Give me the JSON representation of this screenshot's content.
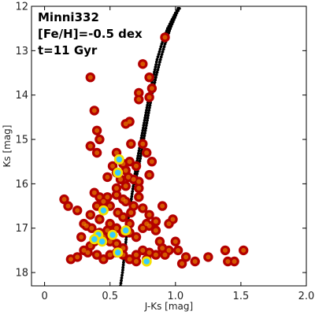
{
  "chart_data": {
    "type": "scatter",
    "title": "",
    "xlabel": "J-Ks [mag]",
    "ylabel": "Ks [mag]",
    "xlim": [
      -0.1,
      2.0
    ],
    "ylim": [
      18.3,
      12.0
    ],
    "y_inverted": true,
    "xticks": [
      0,
      0.5,
      1.0,
      1.5,
      2.0
    ],
    "xtick_labels": [
      "0",
      "0.5",
      "1.0",
      "1.5",
      "2.0"
    ],
    "yticks": [
      12,
      13,
      14,
      15,
      16,
      17,
      18
    ],
    "ytick_labels": [
      "12",
      "13",
      "14",
      "15",
      "16",
      "17",
      "18"
    ],
    "grid": false,
    "annotations": [
      "Minni332",
      "[Fe/H]=-0.5 dex",
      "t=11 Gyr"
    ],
    "colors": {
      "star_outer": "#b30000",
      "star_mid": "#f0a000",
      "star_core": "#f5e000",
      "dense_core": "#33ccff",
      "isochrone": "#000000"
    },
    "series": [
      {
        "name": "",
        "kind": "stars",
        "points": [
          [
            0.35,
            13.6
          ],
          [
            0.38,
            14.35
          ],
          [
            0.4,
            14.8
          ],
          [
            0.42,
            15.0
          ],
          [
            0.35,
            15.15
          ],
          [
            0.4,
            15.3
          ],
          [
            0.55,
            15.3
          ],
          [
            0.6,
            15.55
          ],
          [
            0.62,
            15.7
          ],
          [
            0.52,
            15.6
          ],
          [
            0.55,
            15.75
          ],
          [
            0.65,
            15.5
          ],
          [
            0.48,
            15.85
          ],
          [
            0.58,
            15.9
          ],
          [
            0.64,
            15.85
          ],
          [
            0.68,
            15.9
          ],
          [
            0.7,
            15.6
          ],
          [
            0.72,
            15.95
          ],
          [
            0.55,
            16.1
          ],
          [
            0.62,
            16.05
          ],
          [
            0.38,
            16.2
          ],
          [
            0.42,
            16.3
          ],
          [
            0.45,
            16.4
          ],
          [
            0.48,
            16.3
          ],
          [
            0.5,
            16.5
          ],
          [
            0.45,
            16.6
          ],
          [
            0.4,
            16.5
          ],
          [
            0.35,
            16.7
          ],
          [
            0.3,
            16.9
          ],
          [
            0.25,
            16.6
          ],
          [
            0.15,
            16.35
          ],
          [
            0.18,
            16.5
          ],
          [
            0.42,
            16.8
          ],
          [
            0.5,
            16.9
          ],
          [
            0.55,
            17.0
          ],
          [
            0.6,
            17.1
          ],
          [
            0.65,
            17.1
          ],
          [
            0.7,
            17.2
          ],
          [
            0.75,
            17.0
          ],
          [
            0.8,
            16.95
          ],
          [
            0.85,
            17.05
          ],
          [
            0.88,
            17.3
          ],
          [
            0.9,
            17.45
          ],
          [
            0.95,
            17.5
          ],
          [
            0.92,
            17.6
          ],
          [
            0.85,
            17.6
          ],
          [
            0.8,
            17.55
          ],
          [
            0.75,
            17.5
          ],
          [
            0.7,
            17.6
          ],
          [
            0.6,
            17.45
          ],
          [
            0.55,
            17.35
          ],
          [
            0.5,
            17.3
          ],
          [
            0.45,
            17.2
          ],
          [
            0.4,
            17.25
          ],
          [
            0.38,
            17.3
          ],
          [
            0.35,
            17.4
          ],
          [
            0.42,
            17.1
          ],
          [
            0.48,
            17.05
          ],
          [
            0.3,
            17.5
          ],
          [
            0.25,
            17.65
          ],
          [
            0.2,
            17.7
          ],
          [
            0.33,
            17.55
          ],
          [
            0.4,
            17.6
          ],
          [
            0.45,
            17.7
          ],
          [
            0.5,
            17.6
          ],
          [
            0.55,
            17.55
          ],
          [
            0.6,
            17.6
          ],
          [
            0.65,
            17.7
          ],
          [
            0.7,
            17.75
          ],
          [
            0.78,
            17.7
          ],
          [
            0.62,
            16.4
          ],
          [
            0.68,
            16.5
          ],
          [
            0.72,
            16.3
          ],
          [
            0.75,
            16.55
          ],
          [
            0.8,
            16.7
          ],
          [
            0.78,
            16.9
          ],
          [
            0.85,
            16.85
          ],
          [
            0.6,
            16.75
          ],
          [
            0.65,
            16.9
          ],
          [
            0.55,
            16.25
          ],
          [
            0.6,
            16.35
          ],
          [
            0.72,
            16.1
          ],
          [
            0.75,
            15.1
          ],
          [
            0.78,
            15.3
          ],
          [
            0.8,
            15.8
          ],
          [
            0.82,
            15.5
          ],
          [
            0.66,
            15.1
          ],
          [
            0.62,
            14.65
          ],
          [
            0.65,
            14.6
          ],
          [
            0.72,
            14.1
          ],
          [
            0.72,
            13.95
          ],
          [
            0.75,
            13.3
          ],
          [
            0.8,
            13.6
          ],
          [
            0.82,
            13.85
          ],
          [
            0.8,
            14.05
          ],
          [
            0.92,
            12.7
          ],
          [
            0.98,
            16.8
          ],
          [
            1.0,
            17.3
          ],
          [
            1.02,
            17.5
          ],
          [
            1.05,
            17.8
          ],
          [
            1.08,
            17.65
          ],
          [
            1.15,
            17.75
          ],
          [
            1.25,
            17.65
          ],
          [
            1.38,
            17.5
          ],
          [
            1.4,
            17.75
          ],
          [
            1.45,
            17.75
          ],
          [
            1.52,
            17.5
          ],
          [
            0.9,
            16.5
          ],
          [
            0.95,
            16.9
          ],
          [
            0.28,
            17.2
          ],
          [
            0.32,
            16.95
          ],
          [
            0.36,
            17.0
          ],
          [
            0.56,
            16.65
          ],
          [
            0.66,
            16.65
          ]
        ]
      },
      {
        "name": "",
        "kind": "dense_cores",
        "points": [
          [
            0.57,
            15.45
          ],
          [
            0.56,
            15.75
          ],
          [
            0.45,
            16.6
          ],
          [
            0.41,
            17.15
          ],
          [
            0.38,
            17.25
          ],
          [
            0.44,
            17.3
          ],
          [
            0.52,
            17.15
          ],
          [
            0.56,
            17.55
          ],
          [
            0.78,
            17.75
          ],
          [
            0.62,
            17.05
          ]
        ]
      },
      {
        "name": "",
        "kind": "isochrone",
        "points": [
          [
            0.58,
            18.3
          ],
          [
            0.595,
            18.0
          ],
          [
            0.61,
            17.6
          ],
          [
            0.625,
            17.2
          ],
          [
            0.64,
            16.8
          ],
          [
            0.66,
            16.4
          ],
          [
            0.68,
            16.0
          ],
          [
            0.7,
            15.6
          ],
          [
            0.725,
            15.2
          ],
          [
            0.75,
            14.8
          ],
          [
            0.775,
            14.4
          ],
          [
            0.8,
            14.0
          ],
          [
            0.83,
            13.6
          ],
          [
            0.86,
            13.2
          ],
          [
            0.895,
            12.85
          ],
          [
            0.94,
            12.5
          ],
          [
            1.0,
            12.15
          ],
          [
            1.03,
            12.0
          ]
        ]
      },
      {
        "name": "",
        "kind": "isochrone",
        "points": [
          [
            0.69,
            16.0
          ],
          [
            0.72,
            15.6
          ],
          [
            0.745,
            15.2
          ],
          [
            0.77,
            14.8
          ],
          [
            0.795,
            14.4
          ],
          [
            0.82,
            14.0
          ],
          [
            0.85,
            13.6
          ],
          [
            0.885,
            13.2
          ],
          [
            0.92,
            12.85
          ],
          [
            0.96,
            12.5
          ],
          [
            1.01,
            12.15
          ],
          [
            1.04,
            12.0
          ]
        ]
      }
    ]
  }
}
